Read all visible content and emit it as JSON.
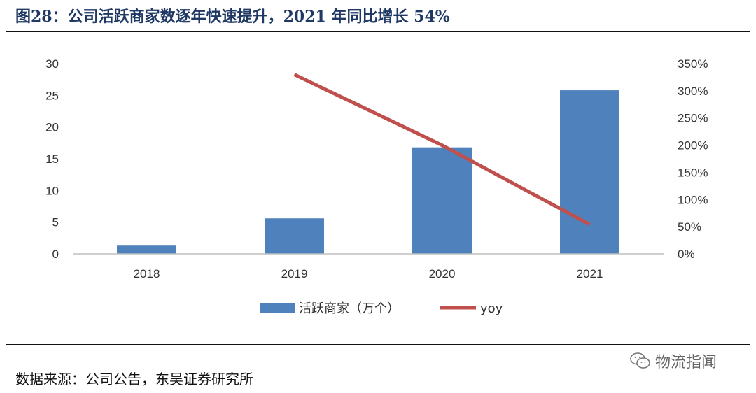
{
  "figure": {
    "title": "图28：公司活跃商家数逐年快速提升，2021 年同比增长 54%",
    "source": "数据来源：公司公告，东吴证券研究所",
    "watermark": "物流指闻",
    "watermark_icon": "wechat-icon"
  },
  "chart_data": {
    "type": "bar",
    "categories": [
      "2018",
      "2019",
      "2020",
      "2021"
    ],
    "series": [
      {
        "name": "活跃商家（万个）",
        "kind": "bar",
        "axis": "left",
        "color": "#4f81bd",
        "values": [
          1.3,
          5.6,
          16.8,
          25.8
        ]
      },
      {
        "name": "yoy",
        "kind": "line",
        "axis": "right",
        "color": "#c0504d",
        "values": [
          null,
          3.3,
          2.0,
          0.54
        ]
      }
    ],
    "y_left": {
      "min": 0,
      "max": 30,
      "ticks": [
        "0",
        "5",
        "10",
        "15",
        "20",
        "25",
        "30"
      ]
    },
    "y_right": {
      "min": 0,
      "max": 3.5,
      "ticks": [
        "0%",
        "50%",
        "100%",
        "150%",
        "200%",
        "250%",
        "300%",
        "350%"
      ]
    },
    "grid": false,
    "legend_position": "bottom"
  }
}
